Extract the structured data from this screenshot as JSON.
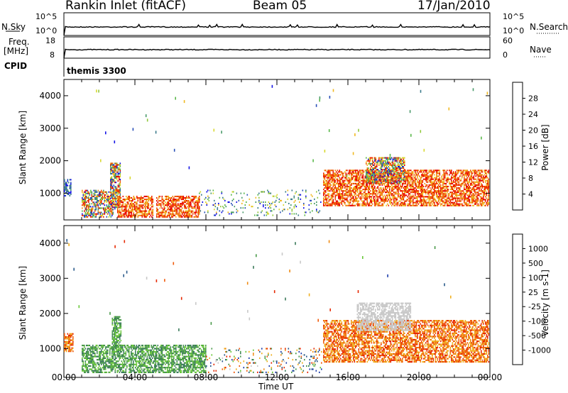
{
  "header": {
    "station": "Rankin Inlet (fitACF)",
    "beam": "Beam 05",
    "date": "17/Jan/2010"
  },
  "top_panels": {
    "nsky_label": "N.Sky",
    "nsky_ticks": [
      "10^5",
      "10^0"
    ],
    "nsearch_label": "N.Search",
    "nsearch_ticks": [
      "10^5",
      "10^0"
    ],
    "freq_label_1": "Freq.",
    "freq_label_2": "[MHz]",
    "freq_ticks": [
      "18",
      "8"
    ],
    "nave_label": "Nave",
    "nave_ticks": [
      "60",
      "0"
    ],
    "cpid_label": "CPID",
    "cpid_value": "themis 3300"
  },
  "chart_data": [
    {
      "type": "heatmap",
      "panel": "power",
      "ylabel": "Slant Range [km]",
      "xlabel": "",
      "y_ticks": [
        "4000",
        "3000",
        "2000",
        "1000"
      ],
      "y_tick_values": [
        4000,
        3000,
        2000,
        1000
      ],
      "ylim": [
        180,
        4500
      ],
      "xlim": [
        0,
        24
      ],
      "colorbar": {
        "label": "Power [dB]",
        "ticks": [
          "28",
          "24",
          "20",
          "16",
          "12",
          "8",
          "4"
        ],
        "colors": [
          "#1414e6",
          "#2a50b8",
          "#3a7a8a",
          "#4a9a6a",
          "#5ab84a",
          "#90c83c",
          "#d8d830",
          "#f0b820",
          "#f08c14",
          "#f05a0a",
          "#f02800",
          "#e60000"
        ]
      },
      "regions": [
        {
          "t0": 0.0,
          "t1": 0.4,
          "r0": 900,
          "r1": 1400,
          "level": "low"
        },
        {
          "t0": 1.0,
          "t1": 2.8,
          "r0": 250,
          "r1": 1100,
          "level": "mixed"
        },
        {
          "t0": 2.6,
          "t1": 3.2,
          "r0": 500,
          "r1": 1900,
          "level": "mixed"
        },
        {
          "t0": 3.0,
          "t1": 5.0,
          "r0": 250,
          "r1": 900,
          "level": "high"
        },
        {
          "t0": 5.2,
          "t1": 7.6,
          "r0": 250,
          "r1": 900,
          "level": "high"
        },
        {
          "t0": 7.6,
          "t1": 14.5,
          "r0": 300,
          "r1": 1100,
          "level": "sparse"
        },
        {
          "t0": 14.6,
          "t1": 23.9,
          "r0": 600,
          "r1": 1700,
          "level": "high"
        },
        {
          "t0": 17.0,
          "t1": 19.2,
          "r0": 1300,
          "r1": 2100,
          "level": "mixed"
        }
      ]
    },
    {
      "type": "heatmap",
      "panel": "velocity",
      "ylabel": "Slant Range [km]",
      "xlabel": "Time UT",
      "y_ticks": [
        "4000",
        "3000",
        "2000",
        "1000"
      ],
      "y_tick_values": [
        4000,
        3000,
        2000,
        1000
      ],
      "ylim": [
        180,
        4500
      ],
      "x_ticks": [
        "00:00",
        "04:00",
        "08:00",
        "12:00",
        "16:00",
        "20:00",
        "00:00"
      ],
      "x_tick_values": [
        0,
        4,
        8,
        12,
        16,
        20,
        24
      ],
      "xlim": [
        0,
        24
      ],
      "colorbar": {
        "label": "Velocity [m s-1]",
        "ticks": [
          "1000",
          "500",
          "100",
          "25",
          "-25",
          "-100",
          "-500",
          "-1000"
        ],
        "colors": [
          "#1a3aaa",
          "#2a5a8a",
          "#3a7a5a",
          "#4a9a4a",
          "#6ac83a",
          "#c8c8c8",
          "#f0b020",
          "#f08c14",
          "#f05a0a",
          "#e62800"
        ]
      },
      "regions": [
        {
          "t0": 0.0,
          "t1": 0.5,
          "r0": 900,
          "r1": 1400,
          "level": "orange"
        },
        {
          "t0": 1.0,
          "t1": 8.0,
          "r0": 300,
          "r1": 1100,
          "level": "green"
        },
        {
          "t0": 2.7,
          "t1": 3.2,
          "r0": 800,
          "r1": 1900,
          "level": "green"
        },
        {
          "t0": 8.0,
          "t1": 14.5,
          "r0": 300,
          "r1": 1000,
          "level": "sparse"
        },
        {
          "t0": 14.6,
          "t1": 23.9,
          "r0": 600,
          "r1": 1800,
          "level": "orange"
        },
        {
          "t0": 16.5,
          "t1": 19.5,
          "r0": 1500,
          "r1": 2300,
          "level": "grey"
        }
      ]
    }
  ]
}
